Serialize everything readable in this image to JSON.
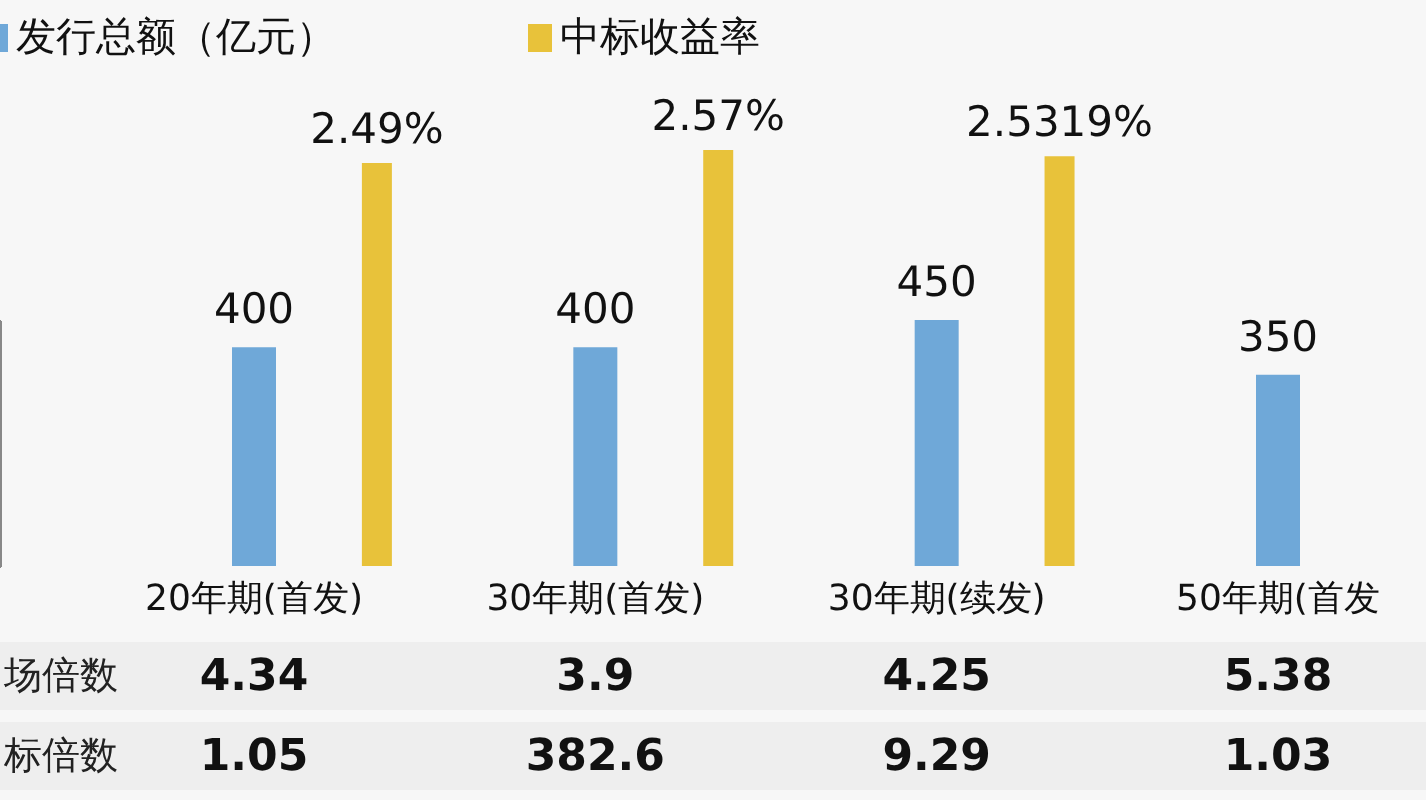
{
  "chart_data": {
    "type": "bar",
    "categories": [
      "20年期(首发)",
      "30年期(首发)",
      "30年期(续发)",
      "50年期(首发"
    ],
    "series": [
      {
        "name": "发行总额（亿元）",
        "type": "bar",
        "color": "#6fa8d8",
        "values": [
          400,
          400,
          450,
          350
        ]
      },
      {
        "name": "中标收益率",
        "type": "bar",
        "axis": "y2",
        "color": "#e8c23a",
        "values": [
          2.49,
          2.57,
          2.5319,
          null
        ],
        "value_labels": [
          "2.49%",
          "2.57%",
          "2.5319%",
          null
        ]
      }
    ],
    "annotations": [
      "场倍数",
      "4.34",
      "3.9",
      "4.25",
      "5.38",
      "标倍数",
      "1.05",
      "382.6",
      "9.29",
      "1.03"
    ],
    "data_labels": true,
    "legend": "top left",
    "grid": false
  }
}
